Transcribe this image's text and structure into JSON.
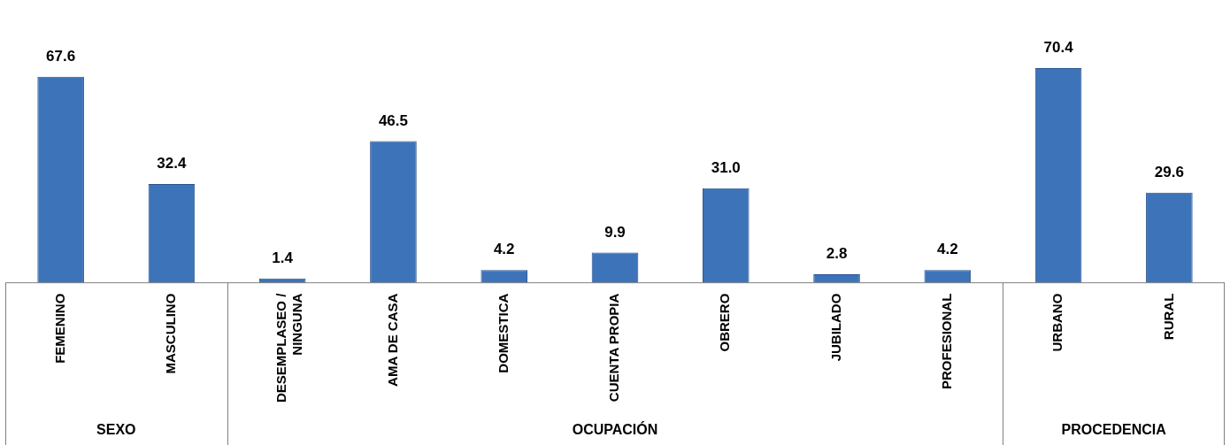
{
  "chart_data": {
    "type": "bar",
    "categories": [
      "FEMENINO",
      "MASCULINO",
      "DESEMPLASEO / NINGUNA",
      "AMA DE CASA",
      "DOMESTICA",
      "CUENTA PROPIA",
      "OBRERO",
      "JUBILADO",
      "PROFESIONAL",
      "URBANO",
      "RURAL"
    ],
    "values": [
      67.6,
      32.4,
      1.4,
      46.5,
      4.2,
      9.9,
      31.0,
      2.8,
      4.2,
      70.4,
      29.6
    ],
    "value_labels": [
      "67.6",
      "32.4",
      "1.4",
      "46.5",
      "4.2",
      "9.9",
      "31.0",
      "2.8",
      "4.2",
      "70.4",
      "29.6"
    ],
    "color": "#3d73b9",
    "annotations": [
      "SEXO",
      "OCUPACIÓN",
      "PROCEDENCIA"
    ],
    "grid": false,
    "legend": false
  }
}
